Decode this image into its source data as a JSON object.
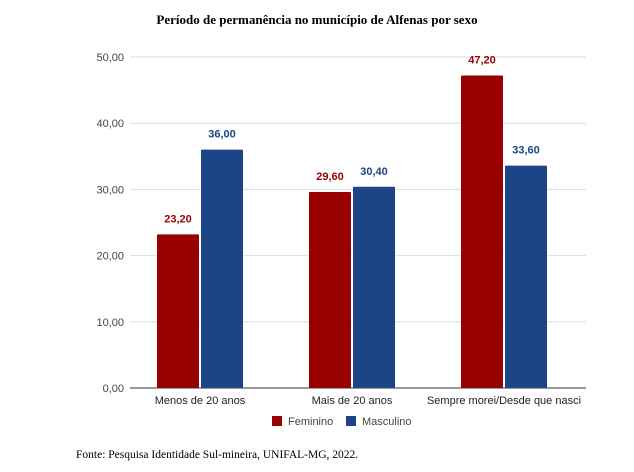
{
  "chart_data": {
    "type": "bar",
    "title": "Período de permanência no município de Alfenas por sexo",
    "xlabel": "",
    "ylabel": "",
    "categories": [
      "Menos de 20 anos",
      "Mais de 20 anos",
      "Sempre morei/Desde que nasci"
    ],
    "series": [
      {
        "name": "Feminino",
        "color": "#990000",
        "values": [
          23.2,
          29.6,
          47.2
        ],
        "labels": [
          "23,20",
          "29,60",
          "47,20"
        ]
      },
      {
        "name": "Masculino",
        "color": "#1c4587",
        "values": [
          36.0,
          30.4,
          33.6
        ],
        "labels": [
          "36,00",
          "30,40",
          "33,60"
        ]
      }
    ],
    "ylim": [
      0,
      50
    ],
    "yticks": [
      0,
      10,
      20,
      30,
      40,
      50
    ],
    "ytick_labels": [
      "0,00",
      "10,00",
      "20,00",
      "30,00",
      "40,00",
      "50,00"
    ],
    "grid": true,
    "legend_position": "bottom"
  },
  "footer": "Fonte: Pesquisa Identidade Sul-mineira, UNIFAL-MG, 2022."
}
